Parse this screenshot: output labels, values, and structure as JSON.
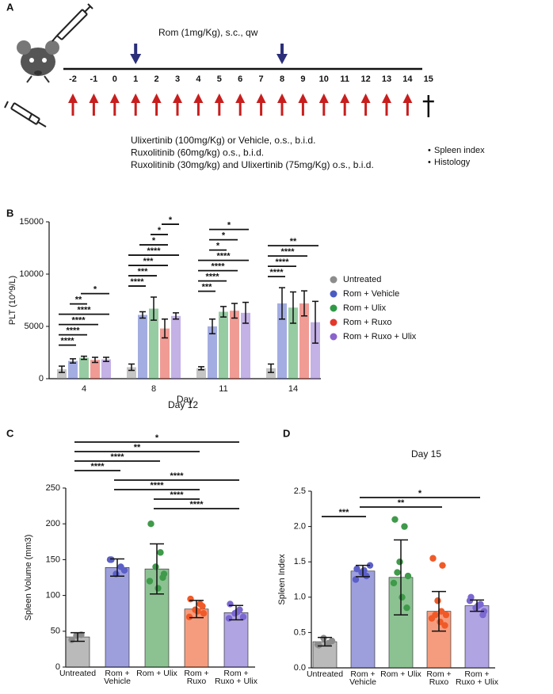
{
  "panel_a": {
    "label": "A",
    "rom_label": "Rom (1mg/Kg), s.c., qw",
    "days": [
      -2,
      -1,
      0,
      1,
      2,
      3,
      4,
      5,
      6,
      7,
      8,
      9,
      10,
      11,
      12,
      13,
      14,
      15
    ],
    "rom_days": [
      1,
      8
    ],
    "treatment_days": [
      -2,
      -1,
      0,
      1,
      2,
      3,
      4,
      5,
      6,
      7,
      8,
      9,
      10,
      11,
      12,
      13,
      14
    ],
    "treatments": [
      "Ulixertinib (100mg/Kg) or Vehicle, o.s., b.i.d.",
      "Ruxolitinib (60mg/kg) o.s., b.i.d.",
      "Ruxolitinib (30mg/kg) and Ulixertinib (75mg/Kg) o.s., b.i.d."
    ],
    "endpoints": [
      "Spleen index",
      "Histology"
    ]
  },
  "chart_data": [
    {
      "type": "bar",
      "panel_label": "B",
      "y_label": "PLT (10^9/L)",
      "x_label": "Day",
      "categories": [
        4,
        8,
        11,
        14
      ],
      "ylim": [
        0,
        15000
      ],
      "yticks": [
        0,
        5000,
        10000,
        15000
      ],
      "legend": "right",
      "series": [
        {
          "name": "Untreated",
          "color": "#8c8c8c",
          "values": [
            900,
            1100,
            1000,
            1000
          ],
          "errors": [
            300,
            300,
            150,
            400
          ]
        },
        {
          "name": "Rom + Vehicle",
          "color": "#4a5cc4",
          "values": [
            1700,
            6100,
            5000,
            7200
          ],
          "errors": [
            200,
            300,
            700,
            1500
          ]
        },
        {
          "name": "Rom + Ulix",
          "color": "#2f9a45",
          "values": [
            2000,
            6700,
            6400,
            6800
          ],
          "errors": [
            150,
            1100,
            500,
            1500
          ]
        },
        {
          "name": "Rom + Ruxo",
          "color": "#e2392b",
          "values": [
            1800,
            4800,
            6500,
            7200
          ],
          "errors": [
            250,
            900,
            700,
            1200
          ]
        },
        {
          "name": "Rom + Ruxo + Ulix",
          "color": "#8a63cc",
          "values": [
            1850,
            6000,
            6300,
            5400
          ],
          "errors": [
            200,
            300,
            1000,
            2000
          ]
        }
      ],
      "annotations": [
        {
          "category": 4,
          "between": [
            "Untreated",
            "Rom + Vehicle"
          ],
          "label": "****"
        },
        {
          "category": 4,
          "between": [
            "Untreated",
            "Rom + Ulix"
          ],
          "label": "****"
        },
        {
          "category": 4,
          "between": [
            "Untreated",
            "Rom + Ruxo"
          ],
          "label": "****"
        },
        {
          "category": 4,
          "between": [
            "Untreated",
            "Rom + Ruxo + Ulix"
          ],
          "label": "****"
        },
        {
          "category": 4,
          "between": [
            "Rom + Vehicle",
            "Rom + Ulix"
          ],
          "label": "**"
        },
        {
          "category": 4,
          "between": [
            "Rom + Ulix",
            "Rom + Ruxo + Ulix"
          ],
          "label": "*"
        },
        {
          "category": 8,
          "between": [
            "Untreated",
            "Rom + Vehicle"
          ],
          "label": "****"
        },
        {
          "category": 8,
          "between": [
            "Untreated",
            "Rom + Ulix"
          ],
          "label": "***"
        },
        {
          "category": 8,
          "between": [
            "Untreated",
            "Rom + Ruxo"
          ],
          "label": "***"
        },
        {
          "category": 8,
          "between": [
            "Untreated",
            "Rom + Ruxo + Ulix"
          ],
          "label": "****"
        },
        {
          "category": 8,
          "between": [
            "Rom + Vehicle",
            "Rom + Ruxo"
          ],
          "label": "*"
        },
        {
          "category": 8,
          "between": [
            "Rom + Ulix",
            "Rom + Ruxo"
          ],
          "label": "*"
        },
        {
          "category": 8,
          "between": [
            "Rom + Ruxo",
            "Rom + Ruxo + Ulix"
          ],
          "label": "*"
        },
        {
          "category": 11,
          "between": [
            "Untreated",
            "Rom + Vehicle"
          ],
          "label": "***"
        },
        {
          "category": 11,
          "between": [
            "Untreated",
            "Rom + Ulix"
          ],
          "label": "****"
        },
        {
          "category": 11,
          "between": [
            "Untreated",
            "Rom + Ruxo"
          ],
          "label": "****"
        },
        {
          "category": 11,
          "between": [
            "Untreated",
            "Rom + Ruxo + Ulix"
          ],
          "label": "****"
        },
        {
          "category": 11,
          "between": [
            "Rom + Vehicle",
            "Rom + Ulix"
          ],
          "label": "*"
        },
        {
          "category": 11,
          "between": [
            "Rom + Vehicle",
            "Rom + Ruxo"
          ],
          "label": "*"
        },
        {
          "category": 11,
          "between": [
            "Rom + Vehicle",
            "Rom + Ruxo + Ulix"
          ],
          "label": "*"
        },
        {
          "category": 14,
          "between": [
            "Untreated",
            "Rom + Vehicle"
          ],
          "label": "****"
        },
        {
          "category": 14,
          "between": [
            "Untreated",
            "Rom + Ulix"
          ],
          "label": "****"
        },
        {
          "category": 14,
          "between": [
            "Untreated",
            "Rom + Ruxo"
          ],
          "label": "****"
        },
        {
          "category": 14,
          "between": [
            "Untreated",
            "Rom + Ruxo + Ulix"
          ],
          "label": "**"
        }
      ]
    },
    {
      "type": "bar",
      "panel_label": "C",
      "title": "Day 12",
      "y_label": "Spleen Volume (mm3)",
      "categories": [
        "Untreated",
        "Rom + Vehicle",
        "Rom + Ulix",
        "Rom + Ruxo",
        "Rom + Ruxo + Ulix"
      ],
      "values": [
        42,
        139,
        137,
        81,
        76
      ],
      "errors": [
        6,
        12,
        35,
        12,
        10
      ],
      "colors": [
        "#8c8c8c",
        "#5b5fc7",
        "#3f9a4a",
        "#f05a28",
        "#7b68d0"
      ],
      "points": [
        [
          38,
          45,
          44
        ],
        [
          150,
          140,
          130,
          135,
          150
        ],
        [
          200,
          160,
          140,
          130,
          120,
          110,
          125
        ],
        [
          95,
          88,
          80,
          75,
          70,
          78,
          85
        ],
        [
          88,
          80,
          75,
          70,
          68,
          77
        ]
      ],
      "ylim": [
        0,
        250
      ],
      "yticks": [
        0,
        50,
        100,
        150,
        200,
        250
      ],
      "annotations": [
        {
          "between": [
            "Rom + Ulix",
            "Rom + Ruxo + Ulix"
          ],
          "label": "****"
        },
        {
          "between": [
            "Rom + Ulix",
            "Rom + Ruxo"
          ],
          "label": "****"
        },
        {
          "between": [
            "Rom + Vehicle",
            "Rom + Ruxo"
          ],
          "label": "****"
        },
        {
          "between": [
            "Rom + Vehicle",
            "Rom + Ruxo + Ulix"
          ],
          "label": "****"
        },
        {
          "between": [
            "Untreated",
            "Rom + Vehicle"
          ],
          "label": "****"
        },
        {
          "between": [
            "Untreated",
            "Rom + Ulix"
          ],
          "label": "****"
        },
        {
          "between": [
            "Untreated",
            "Rom + Ruxo"
          ],
          "label": "**"
        },
        {
          "between": [
            "Untreated",
            "Rom + Ruxo + Ulix"
          ],
          "label": "*"
        }
      ]
    },
    {
      "type": "bar",
      "panel_label": "D",
      "title": "Day 15",
      "y_label": "Spleen Index",
      "categories": [
        "Untreated",
        "Rom + Vehicle",
        "Rom + Ulix",
        "Rom + Ruxo",
        "Rom + Ruxo + Ulix"
      ],
      "values": [
        0.37,
        1.37,
        1.28,
        0.8,
        0.88
      ],
      "errors": [
        0.06,
        0.08,
        0.53,
        0.28,
        0.08
      ],
      "colors": [
        "#8c8c8c",
        "#5b5fc7",
        "#3f9a4a",
        "#f05a28",
        "#7b68d0"
      ],
      "points": [
        [
          0.32,
          0.35,
          0.42,
          0.38,
          0.33
        ],
        [
          1.4,
          1.3,
          1.35,
          1.45,
          1.25,
          1.38
        ],
        [
          2.1,
          2.0,
          1.5,
          1.3,
          1.2,
          1.0,
          0.85,
          1.35
        ],
        [
          1.55,
          1.45,
          0.95,
          0.75,
          0.7,
          0.65,
          0.6,
          0.75,
          0.8
        ],
        [
          1.0,
          0.9,
          0.85,
          0.8,
          0.95,
          0.88,
          0.75
        ]
      ],
      "ylim": [
        0,
        2.5
      ],
      "yticks": [
        {
          "value": 0,
          "label": "0.0"
        },
        0.5,
        {
          "value": 1,
          "label": "1.0"
        },
        1.5,
        {
          "value": 2,
          "label": "2.0"
        },
        2.5
      ],
      "annotations": [
        {
          "between": [
            "Untreated",
            "Rom + Vehicle"
          ],
          "label": "***"
        },
        {
          "between": [
            "Rom + Vehicle",
            "Rom + Ruxo"
          ],
          "label": "**"
        },
        {
          "between": [
            "Rom + Vehicle",
            "Rom + Ruxo + Ulix"
          ],
          "label": "*"
        }
      ]
    }
  ]
}
